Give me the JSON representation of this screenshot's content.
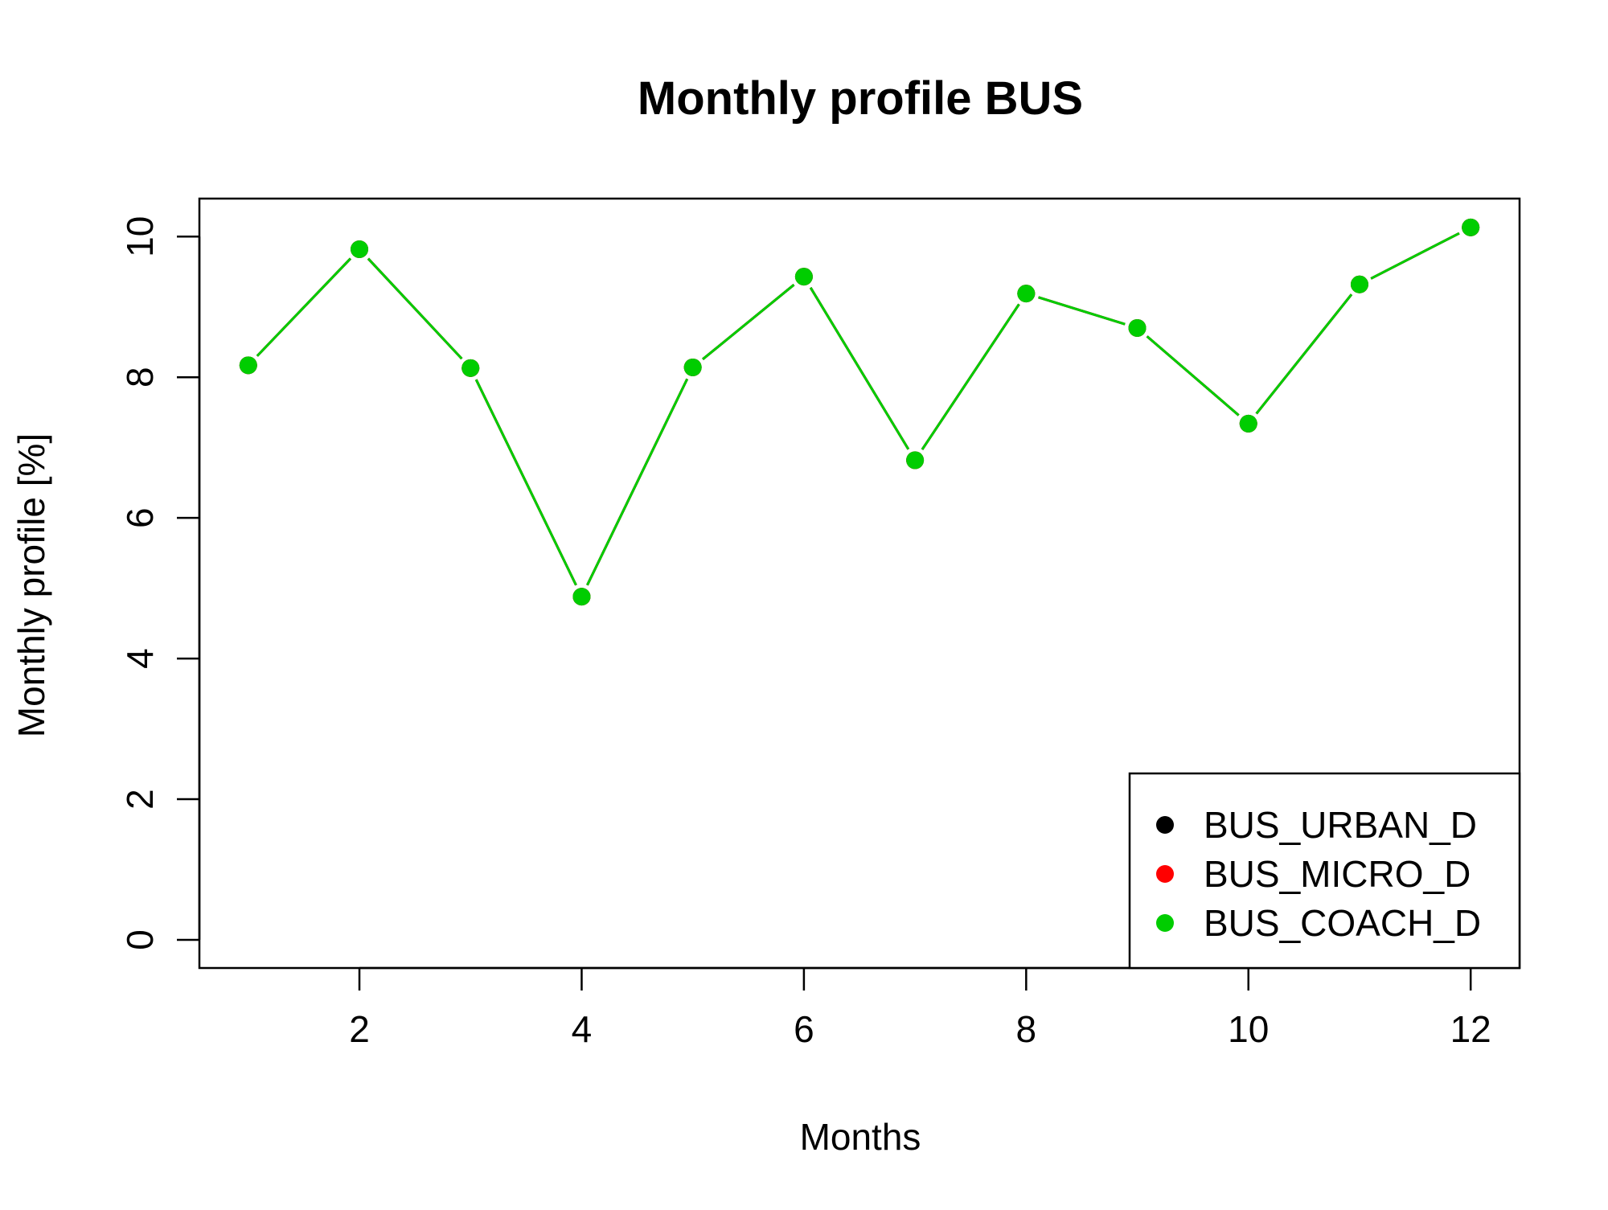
{
  "chart_data": {
    "type": "line",
    "title": "Monthly profile BUS",
    "xlabel": "Months",
    "ylabel": "Monthly profile [%]",
    "x": [
      1,
      2,
      3,
      4,
      5,
      6,
      7,
      8,
      9,
      10,
      11,
      12
    ],
    "xlim": [
      0.56,
      12.44
    ],
    "ylim": [
      -0.4,
      10.54
    ],
    "x_ticks": [
      2,
      4,
      6,
      8,
      10,
      12
    ],
    "y_ticks": [
      0,
      2,
      4,
      6,
      8,
      10
    ],
    "grid": false,
    "legend_position": "bottom-right",
    "series": [
      {
        "name": "BUS_URBAN_D",
        "color": "#000000",
        "values": [
          8.17,
          9.82,
          8.13,
          4.88,
          8.14,
          9.43,
          6.82,
          9.19,
          8.7,
          7.34,
          9.32,
          10.13
        ]
      },
      {
        "name": "BUS_MICRO_D",
        "color": "#ff0000",
        "values": [
          8.17,
          9.82,
          8.13,
          4.88,
          8.14,
          9.43,
          6.82,
          9.19,
          8.7,
          7.34,
          9.32,
          10.13
        ]
      },
      {
        "name": "BUS_COACH_D",
        "color": "#00cd00",
        "values": [
          8.17,
          9.82,
          8.13,
          4.88,
          8.14,
          9.43,
          6.82,
          9.19,
          8.7,
          7.34,
          9.32,
          10.13
        ]
      }
    ]
  }
}
